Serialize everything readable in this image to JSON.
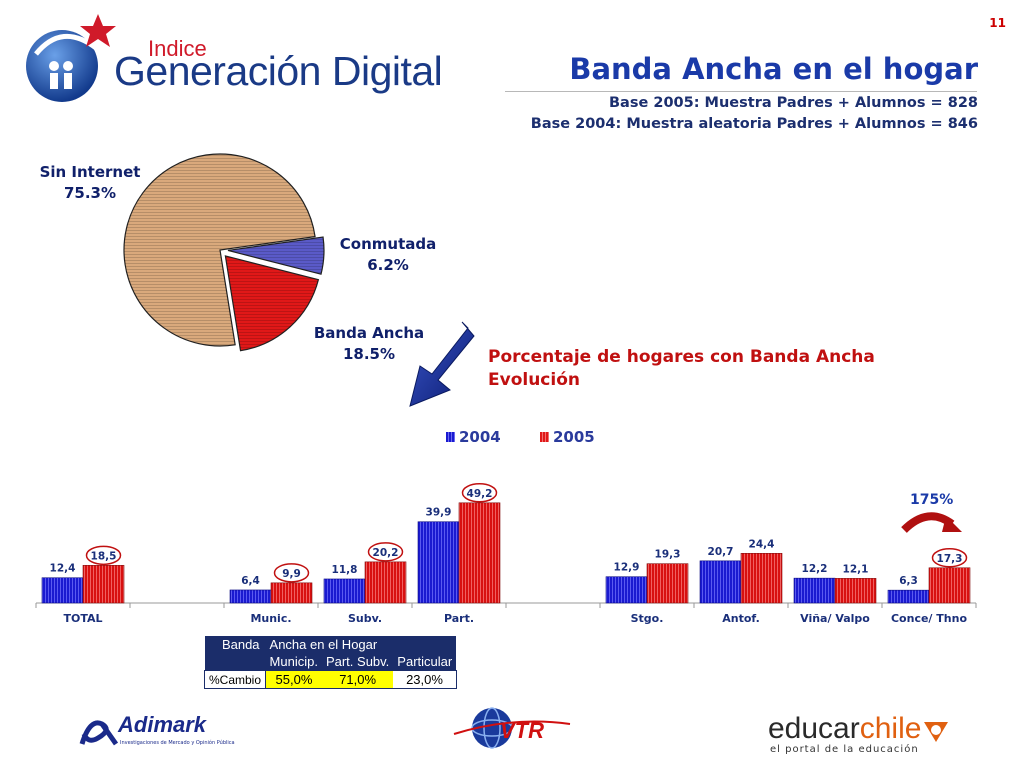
{
  "page_number": "11",
  "brand": {
    "line1": "Indice",
    "line2": "Generación Digital"
  },
  "title": "Banda Ancha en el hogar",
  "base_lines": [
    "Base 2005: Muestra Padres + Alumnos = 828",
    "Base 2004: Muestra aleatoria Padres + Alumnos = 846"
  ],
  "pie": {
    "slices": [
      {
        "name": "Sin Internet",
        "pct_label": "75.3%",
        "value": 75.3,
        "color": "#d9a97c"
      },
      {
        "name": "Conmutada",
        "pct_label": "6.2%",
        "value": 6.2,
        "color": "#5a5ac8"
      },
      {
        "name": "Banda Ancha",
        "pct_label": "18.5%",
        "value": 18.5,
        "color": "#e01818"
      }
    ]
  },
  "evolution_title": [
    "Porcentaje de hogares con Banda Ancha",
    "Evolución"
  ],
  "chart_data": {
    "type": "bar",
    "categories": [
      "TOTAL",
      "",
      "Munic.",
      "Subv.",
      "Part.",
      "",
      "Stgo.",
      "Antof.",
      "Viña/ Valpo",
      "Conce/ Thno"
    ],
    "series": [
      {
        "name": "2004",
        "color": "#1a1ad0",
        "values": [
          12.4,
          null,
          6.4,
          11.8,
          39.9,
          null,
          12.9,
          20.7,
          12.2,
          6.3
        ],
        "labels": [
          "12,4",
          "",
          "6,4",
          "11,8",
          "39,9",
          "",
          "12,9",
          "20,7",
          "12,2",
          "6,3"
        ]
      },
      {
        "name": "2005",
        "color": "#e01818",
        "values": [
          18.5,
          null,
          9.9,
          20.2,
          49.2,
          null,
          19.3,
          24.4,
          12.1,
          17.3
        ],
        "labels": [
          "18,5",
          "",
          "9,9",
          "20,2",
          "49,2",
          "",
          "19,3",
          "24,4",
          "12,1",
          "17,3"
        ],
        "circled": [
          true,
          false,
          true,
          true,
          true,
          false,
          false,
          false,
          false,
          true
        ]
      }
    ],
    "annotation": "175%",
    "ylim": [
      0,
      55
    ],
    "legend_position": "top"
  },
  "table": {
    "header_title": [
      "Banda",
      "Ancha en el Hogar"
    ],
    "columns": [
      "Municip.",
      "Part. Subv.",
      "Particular"
    ],
    "row_label": "%Cambio",
    "values": [
      "55,0%",
      "71,0%",
      "23,0%"
    ],
    "highlight_color": "#ffff00"
  },
  "sponsors": {
    "adimark": {
      "name": "Adimark",
      "tagline": "Investigaciones de Mercado y Opinión Pública"
    },
    "vtr": "VTR",
    "educar": {
      "name_a": "educar",
      "name_b": "chile",
      "tagline": "el portal de la educación"
    }
  }
}
